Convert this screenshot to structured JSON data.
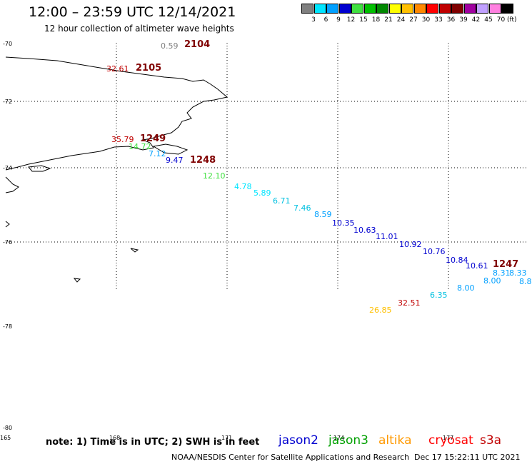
{
  "title": "12:00 – 23:59 UTC 12/14/2021",
  "subtitle": "12 hour collection of altimeter wave heights",
  "color_scale": {
    "labels": [
      "3",
      "6",
      "9",
      "12",
      "15",
      "18",
      "21",
      "24",
      "27",
      "30",
      "33",
      "36",
      "39",
      "42",
      "45",
      "70"
    ],
    "colors": [
      "#808080",
      "#00e5ff",
      "#00a0ff",
      "#0000d0",
      "#40e040",
      "#00c000",
      "#008800",
      "#ffff00",
      "#ffc000",
      "#ff8800",
      "#ff0000",
      "#c00000",
      "#800000",
      "#a000a0",
      "#c0a0ff",
      "#ff80e0",
      "#000000"
    ],
    "unit": "(ft)"
  },
  "lat_labels": [
    "-70",
    "-72",
    "-74",
    "-76",
    "-78",
    "-80"
  ],
  "lon_labels": [
    "165",
    "168",
    "171",
    "-174",
    "177"
  ],
  "measurements": [
    {
      "text": "0.59",
      "color": "#808080"
    },
    {
      "text": "2104",
      "color": "#800000",
      "bold": true
    },
    {
      "text": "32.61",
      "color": "#c00000"
    },
    {
      "text": "2105",
      "color": "#800000",
      "bold": true
    },
    {
      "text": "35.79",
      "color": "#c00000"
    },
    {
      "text": "1249",
      "color": "#800000",
      "bold": true
    },
    {
      "text": "14.72",
      "color": "#40e040"
    },
    {
      "text": "7.12",
      "color": "#00a0ff"
    },
    {
      "text": "9.47",
      "color": "#0000d0"
    },
    {
      "text": "1248",
      "color": "#800000",
      "bold": true
    },
    {
      "text": "12.10",
      "color": "#40e040"
    },
    {
      "text": "4.78",
      "color": "#00e5ff"
    },
    {
      "text": "5.89",
      "color": "#00e5ff"
    },
    {
      "text": "6.71",
      "color": "#00c0e0"
    },
    {
      "text": "7.46",
      "color": "#00c0e0"
    },
    {
      "text": "8.59",
      "color": "#00a0ff"
    },
    {
      "text": "10.35",
      "color": "#0000d0"
    },
    {
      "text": "10.63",
      "color": "#0000d0"
    },
    {
      "text": "11.01",
      "color": "#0000d0"
    },
    {
      "text": "10.92",
      "color": "#0000d0"
    },
    {
      "text": "10.76",
      "color": "#0000d0"
    },
    {
      "text": "10.84",
      "color": "#0000d0"
    },
    {
      "text": "10.61",
      "color": "#0000d0"
    },
    {
      "text": "1247",
      "color": "#800000",
      "bold": true
    },
    {
      "text": "8.31",
      "color": "#00a0ff"
    },
    {
      "text": "8.33",
      "color": "#00a0ff"
    },
    {
      "text": "8.8",
      "color": "#00a0ff"
    },
    {
      "text": "8.00",
      "color": "#00a0ff"
    },
    {
      "text": "8.00",
      "color": "#00a0ff"
    },
    {
      "text": "6.35",
      "color": "#00c0e0"
    },
    {
      "text": "32.51",
      "color": "#c00000"
    },
    {
      "text": "26.85",
      "color": "#ffc000"
    }
  ],
  "note": "note:  1) Time is in UTC;  2) SWH is in feet",
  "satellites": [
    {
      "name": "jason2",
      "color": "#0000d0"
    },
    {
      "name": "jason3",
      "color": "#00a000"
    },
    {
      "name": "altika",
      "color": "#ff9900"
    },
    {
      "name": "cryosat",
      "color": "#ff0000"
    },
    {
      "name": "s3a",
      "color": "#c00000"
    }
  ],
  "credit": "NOAA/NESDIS Center for Satellite Applications and Research",
  "timestamp": "Dec 17 15:22:11 UTC 2021"
}
